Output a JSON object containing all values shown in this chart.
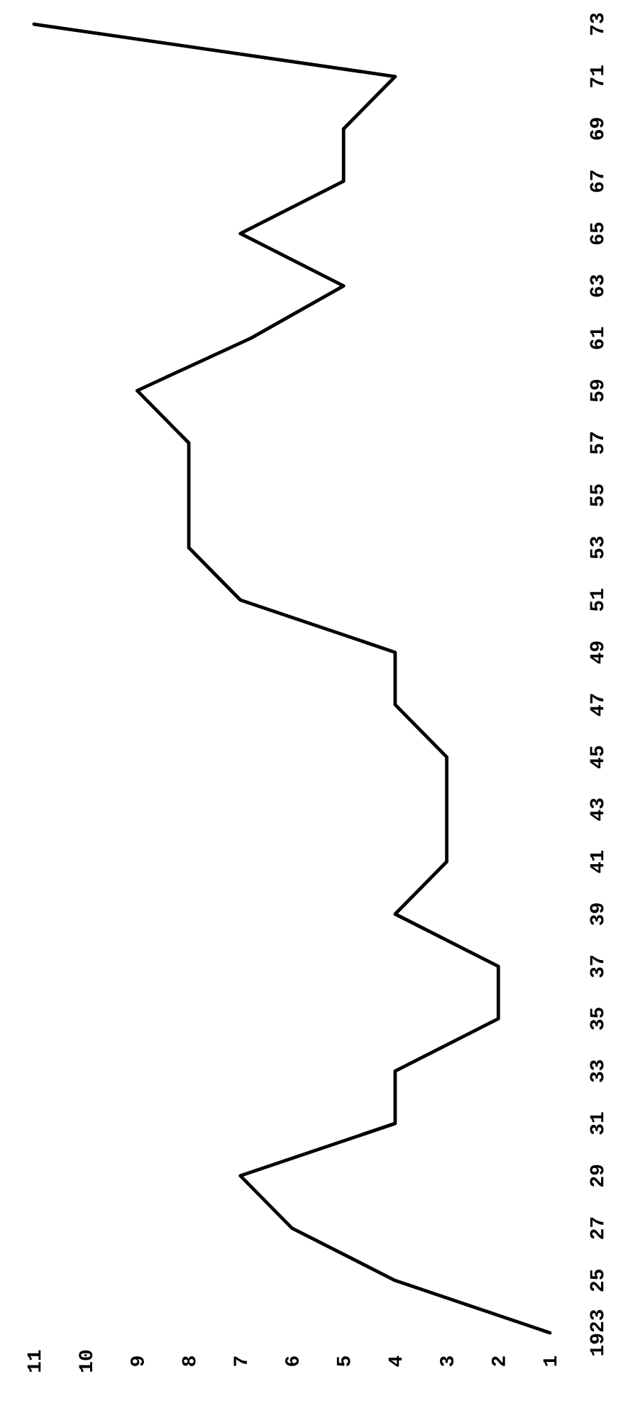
{
  "chart_data": {
    "type": "line",
    "x": [
      1,
      4,
      6,
      7,
      4,
      4,
      2,
      2,
      4,
      3,
      3,
      4,
      4,
      7,
      8,
      8,
      9,
      6.8,
      5,
      7,
      5,
      5,
      4,
      11
    ],
    "values": [
      1923,
      1925,
      1927,
      1929,
      1931,
      1933,
      1935,
      1937,
      1939,
      1941,
      1945,
      1947,
      1949,
      1951,
      1953,
      1957,
      1959,
      1961,
      1963,
      1965,
      1967,
      1969,
      1971,
      1973
    ],
    "color": "#000000",
    "ylim": [
      1923,
      1973
    ],
    "yticks": [
      {
        "value": 1923,
        "label": "1923"
      },
      {
        "value": 1925,
        "label": "25"
      },
      {
        "value": 1927,
        "label": "27"
      },
      {
        "value": 1929,
        "label": "29"
      },
      {
        "value": 1931,
        "label": "31"
      },
      {
        "value": 1933,
        "label": "33"
      },
      {
        "value": 1935,
        "label": "35"
      },
      {
        "value": 1937,
        "label": "37"
      },
      {
        "value": 1939,
        "label": "39"
      },
      {
        "value": 1941,
        "label": "41"
      },
      {
        "value": 1943,
        "label": "43"
      },
      {
        "value": 1945,
        "label": "45"
      },
      {
        "value": 1947,
        "label": "47"
      },
      {
        "value": 1949,
        "label": "49"
      },
      {
        "value": 1951,
        "label": "51"
      },
      {
        "value": 1953,
        "label": "53"
      },
      {
        "value": 1955,
        "label": "55"
      },
      {
        "value": 1957,
        "label": "57"
      },
      {
        "value": 1959,
        "label": "59"
      },
      {
        "value": 1961,
        "label": "61"
      },
      {
        "value": 1963,
        "label": "63"
      },
      {
        "value": 1965,
        "label": "65"
      },
      {
        "value": 1967,
        "label": "67"
      },
      {
        "value": 1969,
        "label": "69"
      },
      {
        "value": 1971,
        "label": "71"
      },
      {
        "value": 1973,
        "label": "73"
      }
    ],
    "xlim": [
      11,
      1
    ],
    "xticks": [
      {
        "value": 1,
        "label": "1"
      },
      {
        "value": 2,
        "label": "2"
      },
      {
        "value": 3,
        "label": "3"
      },
      {
        "value": 4,
        "label": "4"
      },
      {
        "value": 5,
        "label": "5"
      },
      {
        "value": 6,
        "label": "6"
      },
      {
        "value": 7,
        "label": "7"
      },
      {
        "value": 8,
        "label": "8"
      },
      {
        "value": 9,
        "label": "9"
      },
      {
        "value": 10,
        "label": "10"
      },
      {
        "value": 11,
        "label": "11"
      }
    ],
    "grid": false,
    "line_style": "solid"
  }
}
